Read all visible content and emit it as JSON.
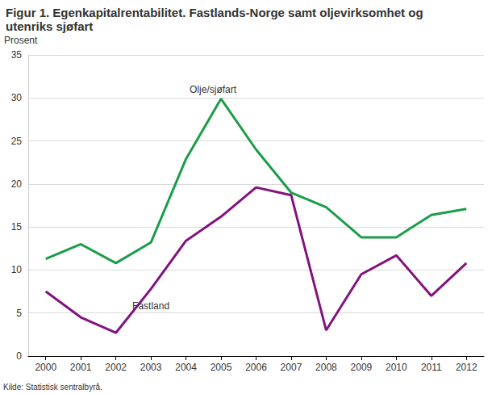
{
  "chart_data": {
    "type": "line",
    "title": "Figur 1. Egenkapitalrentabilitet. Fastlands-Norge samt oljevirksomhet og utenriks sjøfart",
    "y_label": "Prosent",
    "source": "Kilde: Statistisk sentralbyrå.",
    "categories": [
      "2000",
      "2001",
      "2002",
      "2003",
      "2004",
      "2005",
      "2006",
      "2007",
      "2008",
      "2009",
      "2010",
      "2011",
      "2012"
    ],
    "series": [
      {
        "name": "Olje/sjøfart",
        "color": "#1a9d49",
        "values": [
          11.3,
          13.0,
          10.8,
          13.2,
          22.9,
          29.9,
          24.0,
          19.0,
          17.3,
          13.8,
          13.8,
          16.4,
          17.1
        ]
      },
      {
        "name": "Fastland",
        "color": "#83127f",
        "values": [
          7.5,
          4.5,
          2.7,
          7.8,
          13.4,
          16.2,
          19.6,
          18.7,
          3.0,
          9.5,
          11.7,
          7.0,
          10.8
        ]
      }
    ],
    "ylim": [
      0,
      35
    ],
    "yticks": [
      0,
      5,
      10,
      15,
      20,
      25,
      30,
      35
    ],
    "grid": true
  }
}
